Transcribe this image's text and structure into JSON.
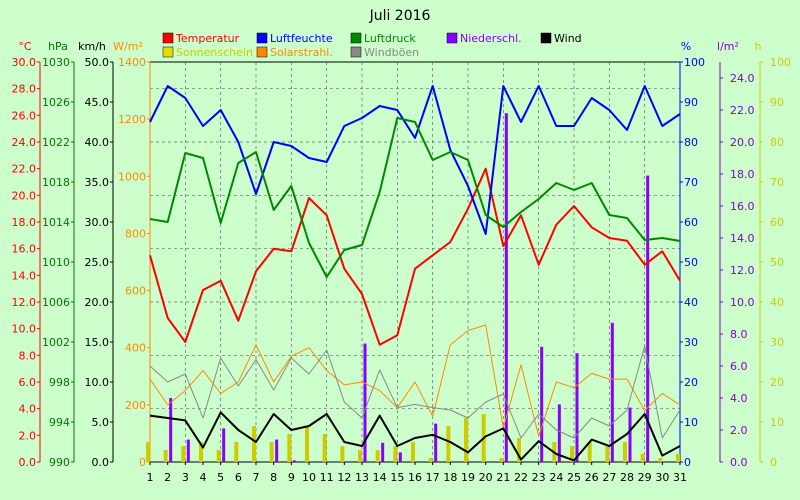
{
  "chart_data": {
    "type": "line",
    "title": "Juli 2016",
    "x": [
      1,
      2,
      3,
      4,
      5,
      6,
      7,
      8,
      9,
      10,
      11,
      12,
      13,
      14,
      15,
      16,
      17,
      18,
      19,
      20,
      21,
      22,
      23,
      24,
      25,
      26,
      27,
      28,
      29,
      30,
      31
    ],
    "axes": [
      {
        "id": "temp",
        "unit": "°C",
        "side": "left",
        "color": "#ff0000",
        "min": 0,
        "max": 30,
        "step": 2,
        "decimals": 1
      },
      {
        "id": "hpa",
        "unit": "hPa",
        "side": "left",
        "color": "#007700",
        "min": 990,
        "max": 1030,
        "step": 4,
        "decimals": 0
      },
      {
        "id": "kmh",
        "unit": "km/h",
        "side": "left",
        "color": "#000000",
        "min": 0,
        "max": 50,
        "step": 5,
        "decimals": 1
      },
      {
        "id": "wm2",
        "unit": "W/m²",
        "side": "left",
        "color": "#ff8800",
        "min": 0,
        "max": 1400,
        "step": 200,
        "decimals": 0
      },
      {
        "id": "pct",
        "unit": "%",
        "side": "right",
        "color": "#0000ff",
        "min": 0,
        "max": 100,
        "step": 10,
        "decimals": 0
      },
      {
        "id": "lm2",
        "unit": "l/m²",
        "side": "right",
        "color": "#8800cc",
        "min": 0,
        "max": 25,
        "step": 2,
        "decimals": 1
      },
      {
        "id": "h",
        "unit": "h",
        "side": "right",
        "color": "#cccc00",
        "min": 0,
        "max": 100,
        "step": 10,
        "decimals": 0
      }
    ],
    "legend": [
      {
        "label": "Temperatur",
        "color": "#ff0000"
      },
      {
        "label": "Luftfeuchte",
        "color": "#0000ff"
      },
      {
        "label": "Luftdruck",
        "color": "#008800"
      },
      {
        "label": "Niederschl.",
        "color": "#8800ff"
      },
      {
        "label": "Wind",
        "color": "#000000"
      },
      {
        "label": "Sonnenschein",
        "color": "#dddd00"
      },
      {
        "label": "Solarstrahl.",
        "color": "#ff8800"
      },
      {
        "label": "Windböen",
        "color": "#888888"
      }
    ],
    "series": [
      {
        "name": "Temperatur",
        "axis": "temp",
        "color": "#ff0000",
        "kind": "line",
        "width": 2,
        "values": [
          15.5,
          10.8,
          9.0,
          12.9,
          13.6,
          10.6,
          14.3,
          16.0,
          15.8,
          19.8,
          18.5,
          14.5,
          12.6,
          8.8,
          9.5,
          14.5,
          15.5,
          16.5,
          19.0,
          22.0,
          16.2,
          18.5,
          14.8,
          17.8,
          19.2,
          17.6,
          16.8,
          16.6,
          14.8,
          15.8,
          13.6
        ]
      },
      {
        "name": "Luftfeuchte",
        "axis": "pct",
        "color": "#0000ff",
        "kind": "line",
        "width": 2,
        "values": [
          85,
          94,
          91,
          84,
          88,
          80,
          67,
          80,
          79,
          76,
          75,
          84,
          86,
          89,
          88,
          81,
          94,
          78,
          69,
          57,
          94,
          85,
          94,
          84,
          84,
          91,
          88,
          83,
          94,
          84,
          87
        ]
      },
      {
        "name": "Luftdruck",
        "axis": "hpa",
        "color": "#008800",
        "kind": "line",
        "width": 2,
        "values": [
          1014.3,
          1014.0,
          1020.9,
          1020.4,
          1013.9,
          1019.9,
          1021.0,
          1015.2,
          1017.6,
          1011.9,
          1008.5,
          1011.2,
          1011.7,
          1017.0,
          1024.4,
          1024.0,
          1020.2,
          1021.0,
          1020.2,
          1014.7,
          1013.5,
          1015.0,
          1016.3,
          1017.9,
          1017.2,
          1017.9,
          1014.7,
          1014.4,
          1012.2,
          1012.4,
          1012.1
        ]
      },
      {
        "name": "Solarstrahl.",
        "axis": "wm2",
        "color": "#ff8800",
        "kind": "line",
        "width": 1,
        "values": [
          290,
          200,
          250,
          320,
          240,
          280,
          410,
          280,
          370,
          400,
          320,
          270,
          280,
          250,
          190,
          280,
          160,
          410,
          460,
          480,
          120,
          340,
          90,
          280,
          260,
          310,
          290,
          290,
          180,
          240,
          200
        ]
      },
      {
        "name": "Windböen",
        "axis": "kmh",
        "color": "#888888",
        "kind": "line",
        "width": 1,
        "values": [
          12.0,
          10.0,
          11.0,
          5.5,
          13.0,
          9.5,
          12.8,
          9.0,
          13.0,
          11.0,
          14.0,
          7.5,
          5.5,
          11.5,
          6.8,
          7.2,
          6.8,
          6.5,
          5.5,
          7.5,
          8.5,
          3.0,
          6.0,
          4.0,
          3.0,
          5.5,
          4.5,
          6.5,
          14.5,
          3.0,
          6.5
        ]
      },
      {
        "name": "Wind",
        "axis": "kmh",
        "color": "#000000",
        "kind": "line",
        "width": 2,
        "values": [
          5.8,
          5.5,
          5.2,
          1.8,
          6.2,
          4.0,
          2.5,
          6.0,
          4.0,
          4.5,
          6.0,
          2.5,
          2.0,
          5.8,
          2.0,
          3.0,
          3.4,
          2.5,
          1.2,
          3.2,
          4.2,
          0.3,
          2.6,
          1.0,
          0.2,
          2.8,
          2.0,
          3.5,
          6.0,
          0.8,
          2.0
        ]
      },
      {
        "name": "Niederschl.",
        "axis": "lm2",
        "color": "#8800ff",
        "kind": "bar",
        "offset": 3,
        "width": 3,
        "values": [
          0,
          4.0,
          1.4,
          0,
          2.1,
          0,
          0,
          1.4,
          0.1,
          0,
          0,
          0,
          7.4,
          1.2,
          0.6,
          0,
          2.4,
          0,
          0,
          0,
          21.8,
          0,
          7.2,
          3.6,
          6.8,
          0,
          8.7,
          3.4,
          17.9,
          0,
          0
        ]
      },
      {
        "name": "Sonnenschein",
        "axis": "h",
        "color": "#cccc00",
        "kind": "bar",
        "offset": -2,
        "width": 4,
        "values": [
          5,
          3,
          4,
          5,
          3,
          5,
          9,
          5,
          7,
          9,
          7,
          4,
          3,
          3,
          4,
          5,
          1,
          9,
          11,
          12,
          1,
          6,
          0,
          5,
          4,
          5,
          4,
          5,
          2,
          1,
          2
        ]
      }
    ]
  }
}
